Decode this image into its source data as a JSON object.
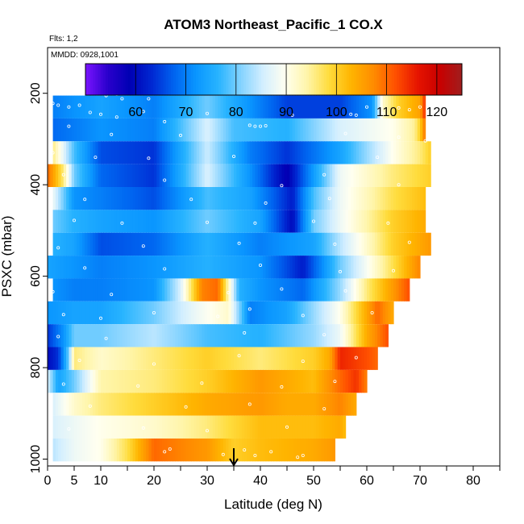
{
  "chart_data": {
    "type": "heatmap",
    "title": "ATOM3 Northeast_Pacific_1 CO.X",
    "subtitle_flights": "Flts: 1,2",
    "subtitle_dates": "MMDD: 0928,1001",
    "xlabel": "Latitude (deg N)",
    "ylabel": "PSXC (mbar)",
    "xlim": [
      0,
      85
    ],
    "ylim": [
      1000,
      100
    ],
    "x_ticks": [
      0,
      5,
      10,
      20,
      30,
      40,
      50,
      60,
      70,
      80
    ],
    "x_tick_labels": [
      "0",
      "5",
      "10",
      "20",
      "30",
      "40",
      "50",
      "60",
      "70",
      "80"
    ],
    "x_minor_ticks": [
      15,
      25,
      35,
      45,
      55,
      65,
      75,
      85
    ],
    "y_ticks": [
      200,
      400,
      600,
      800,
      1000
    ],
    "y_tick_labels": [
      "200",
      "400",
      "600",
      "800",
      "1000"
    ],
    "colorbar": {
      "range": [
        50,
        125
      ],
      "ticks": [
        60,
        70,
        80,
        90,
        100,
        110,
        120
      ],
      "tick_labels": [
        "60",
        "70",
        "80",
        "90",
        "100",
        "110",
        "120"
      ],
      "colors": [
        "#7b14ff",
        "#2a00cc",
        "#0000b4",
        "#0028d2",
        "#0064f0",
        "#0a96ff",
        "#28b4ff",
        "#82d2ff",
        "#d2eeff",
        "#fffff0",
        "#fff5aa",
        "#ffdc3c",
        "#ffb400",
        "#ff8c00",
        "#ff5000",
        "#e61400",
        "#c80000",
        "#a01e1e"
      ]
    },
    "arrow_latitude": 35,
    "bands": [
      {
        "p": 180,
        "lat": [
          10,
          25,
          26,
          30,
          32,
          33
        ],
        "co": [
          82,
          80,
          62,
          58,
          52,
          52
        ]
      },
      {
        "p": 230,
        "lat": [
          1,
          10,
          20,
          30,
          38,
          45,
          55,
          61,
          63,
          66,
          70,
          71
        ],
        "co": [
          70,
          74,
          70,
          80,
          72,
          65,
          65,
          72,
          92,
          100,
          105,
          115
        ]
      },
      {
        "p": 280,
        "lat": [
          1,
          10,
          20,
          30,
          35,
          45,
          55,
          65,
          69,
          70,
          71
        ],
        "co": [
          68,
          72,
          70,
          86,
          78,
          76,
          86,
          90,
          95,
          100,
          110
        ]
      },
      {
        "p": 330,
        "lat": [
          1,
          5,
          10,
          20,
          30,
          38,
          45,
          55,
          65,
          70,
          72
        ],
        "co": [
          96,
          78,
          66,
          64,
          85,
          70,
          64,
          74,
          90,
          96,
          100
        ]
      },
      {
        "p": 380,
        "lat": [
          0,
          3,
          5,
          10,
          20,
          30,
          38,
          45,
          55,
          65,
          72
        ],
        "co": [
          110,
          96,
          80,
          68,
          64,
          86,
          72,
          58,
          88,
          96,
          100
        ]
      },
      {
        "p": 430,
        "lat": [
          1,
          5,
          10,
          20,
          30,
          38,
          46,
          50,
          55,
          65,
          71
        ],
        "co": [
          88,
          72,
          70,
          66,
          78,
          74,
          62,
          78,
          88,
          98,
          102
        ]
      },
      {
        "p": 480,
        "lat": [
          1,
          5,
          10,
          20,
          30,
          40,
          46,
          50,
          55,
          65,
          71
        ],
        "co": [
          80,
          76,
          74,
          72,
          80,
          74,
          60,
          80,
          88,
          100,
          104
        ]
      },
      {
        "p": 530,
        "lat": [
          1,
          5,
          10,
          20,
          30,
          40,
          50,
          55,
          60,
          65,
          72
        ],
        "co": [
          76,
          74,
          66,
          68,
          76,
          70,
          74,
          84,
          92,
          100,
          106
        ]
      },
      {
        "p": 580,
        "lat": [
          0,
          5,
          10,
          20,
          30,
          40,
          48,
          55,
          65,
          70
        ],
        "co": [
          74,
          72,
          70,
          72,
          76,
          72,
          62,
          80,
          98,
          108
        ]
      },
      {
        "p": 630,
        "lat": [
          1,
          5,
          10,
          20,
          25,
          29,
          32,
          36,
          40,
          48,
          55,
          60,
          65,
          68
        ],
        "co": [
          72,
          70,
          70,
          72,
          86,
          108,
          110,
          76,
          72,
          68,
          82,
          96,
          106,
          112
        ]
      },
      {
        "p": 680,
        "lat": [
          0,
          5,
          10,
          20,
          28,
          34,
          38,
          45,
          55,
          62,
          65
        ],
        "co": [
          72,
          74,
          74,
          80,
          88,
          92,
          70,
          74,
          90,
          110,
          104
        ]
      },
      {
        "p": 730,
        "lat": [
          0,
          3,
          5,
          10,
          20,
          30,
          40,
          50,
          55,
          60,
          64
        ],
        "co": [
          64,
          72,
          80,
          80,
          84,
          78,
          76,
          82,
          88,
          104,
          112
        ]
      },
      {
        "p": 780,
        "lat": [
          0,
          2,
          4,
          5,
          10,
          20,
          30,
          40,
          50,
          53,
          55,
          60,
          62
        ],
        "co": [
          60,
          64,
          80,
          96,
          92,
          96,
          100,
          96,
          100,
          104,
          115,
          112,
          110
        ]
      },
      {
        "p": 830,
        "lat": [
          0,
          2,
          5,
          10,
          20,
          30,
          40,
          45,
          50,
          55,
          58,
          60
        ],
        "co": [
          86,
          74,
          80,
          94,
          96,
          100,
          106,
          104,
          102,
          110,
          114,
          108
        ]
      },
      {
        "p": 880,
        "lat": [
          1,
          5,
          10,
          20,
          30,
          40,
          45,
          50,
          55,
          58
        ],
        "co": [
          86,
          92,
          96,
          100,
          104,
          106,
          104,
          104,
          108,
          104
        ]
      },
      {
        "p": 930,
        "lat": [
          1,
          5,
          10,
          20,
          30,
          40,
          50,
          55,
          56
        ],
        "co": [
          86,
          88,
          90,
          92,
          96,
          102,
          102,
          104,
          102
        ]
      },
      {
        "p": 980,
        "lat": [
          1,
          5,
          10,
          15,
          20,
          25,
          30,
          35,
          40,
          50,
          54
        ],
        "co": [
          84,
          88,
          90,
          98,
          110,
          108,
          106,
          100,
          102,
          104,
          106
        ]
      }
    ],
    "obs_points": [
      {
        "lat": 11,
        "p": 205
      },
      {
        "lat": 13,
        "p": 202
      },
      {
        "lat": 14,
        "p": 212
      },
      {
        "lat": 19,
        "p": 212
      },
      {
        "lat": 25,
        "p": 200
      },
      {
        "lat": 27,
        "p": 196
      },
      {
        "lat": 28,
        "p": 198
      },
      {
        "lat": 29,
        "p": 197
      },
      {
        "lat": 30,
        "p": 196
      },
      {
        "lat": 1,
        "p": 222
      },
      {
        "lat": 2,
        "p": 226
      },
      {
        "lat": 4,
        "p": 230
      },
      {
        "lat": 6,
        "p": 226
      },
      {
        "lat": 8,
        "p": 242
      },
      {
        "lat": 10,
        "p": 246
      },
      {
        "lat": 13,
        "p": 252
      },
      {
        "lat": 18,
        "p": 240
      },
      {
        "lat": 22,
        "p": 262
      },
      {
        "lat": 30,
        "p": 244
      },
      {
        "lat": 38,
        "p": 270
      },
      {
        "lat": 39,
        "p": 272
      },
      {
        "lat": 40,
        "p": 272
      },
      {
        "lat": 41,
        "p": 271
      },
      {
        "lat": 46,
        "p": 248
      },
      {
        "lat": 57,
        "p": 246
      },
      {
        "lat": 58,
        "p": 248
      },
      {
        "lat": 60,
        "p": 230
      },
      {
        "lat": 63,
        "p": 244
      },
      {
        "lat": 66,
        "p": 232
      },
      {
        "lat": 68,
        "p": 236
      },
      {
        "lat": 70,
        "p": 230
      },
      {
        "lat": 4,
        "p": 272
      },
      {
        "lat": 12,
        "p": 290
      },
      {
        "lat": 25,
        "p": 292
      },
      {
        "lat": 56,
        "p": 288
      },
      {
        "lat": 66,
        "p": 296
      },
      {
        "lat": 71,
        "p": 304
      },
      {
        "lat": 1,
        "p": 330
      },
      {
        "lat": 9,
        "p": 340
      },
      {
        "lat": 19,
        "p": 342
      },
      {
        "lat": 35,
        "p": 338
      },
      {
        "lat": 62,
        "p": 340
      },
      {
        "lat": 3,
        "p": 378
      },
      {
        "lat": 22,
        "p": 390
      },
      {
        "lat": 44,
        "p": 402
      },
      {
        "lat": 52,
        "p": 378
      },
      {
        "lat": 66,
        "p": 400
      },
      {
        "lat": 7,
        "p": 432
      },
      {
        "lat": 27,
        "p": 432
      },
      {
        "lat": 41,
        "p": 440
      },
      {
        "lat": 53,
        "p": 430
      },
      {
        "lat": 5,
        "p": 478
      },
      {
        "lat": 14,
        "p": 484
      },
      {
        "lat": 30,
        "p": 482
      },
      {
        "lat": 39,
        "p": 484
      },
      {
        "lat": 50,
        "p": 480
      },
      {
        "lat": 64,
        "p": 484
      },
      {
        "lat": 2,
        "p": 538
      },
      {
        "lat": 18,
        "p": 534
      },
      {
        "lat": 36,
        "p": 528
      },
      {
        "lat": 54,
        "p": 530
      },
      {
        "lat": 68,
        "p": 526
      },
      {
        "lat": 7,
        "p": 582
      },
      {
        "lat": 22,
        "p": 584
      },
      {
        "lat": 40,
        "p": 576
      },
      {
        "lat": 55,
        "p": 590
      },
      {
        "lat": 65,
        "p": 588
      },
      {
        "lat": 1,
        "p": 634
      },
      {
        "lat": 12,
        "p": 640
      },
      {
        "lat": 34,
        "p": 636
      },
      {
        "lat": 44,
        "p": 628
      },
      {
        "lat": 56,
        "p": 632
      },
      {
        "lat": 3,
        "p": 684
      },
      {
        "lat": 10,
        "p": 692
      },
      {
        "lat": 20,
        "p": 680
      },
      {
        "lat": 32,
        "p": 688
      },
      {
        "lat": 38,
        "p": 672
      },
      {
        "lat": 48,
        "p": 686
      },
      {
        "lat": 61,
        "p": 680
      },
      {
        "lat": 2,
        "p": 732
      },
      {
        "lat": 11,
        "p": 736
      },
      {
        "lat": 37,
        "p": 724
      },
      {
        "lat": 52,
        "p": 728
      },
      {
        "lat": 6,
        "p": 784
      },
      {
        "lat": 20,
        "p": 792
      },
      {
        "lat": 36,
        "p": 774
      },
      {
        "lat": 48,
        "p": 786
      },
      {
        "lat": 58,
        "p": 778
      },
      {
        "lat": 3,
        "p": 836
      },
      {
        "lat": 17,
        "p": 840
      },
      {
        "lat": 29,
        "p": 834
      },
      {
        "lat": 44,
        "p": 842
      },
      {
        "lat": 54,
        "p": 830
      },
      {
        "lat": 8,
        "p": 884
      },
      {
        "lat": 26,
        "p": 886
      },
      {
        "lat": 38,
        "p": 880
      },
      {
        "lat": 52,
        "p": 890
      },
      {
        "lat": 4,
        "p": 934
      },
      {
        "lat": 18,
        "p": 932
      },
      {
        "lat": 30,
        "p": 938
      },
      {
        "lat": 45,
        "p": 930
      },
      {
        "lat": 22,
        "p": 984
      },
      {
        "lat": 23,
        "p": 978
      },
      {
        "lat": 33,
        "p": 990
      },
      {
        "lat": 37,
        "p": 980
      },
      {
        "lat": 39,
        "p": 992
      },
      {
        "lat": 42,
        "p": 984
      },
      {
        "lat": 47,
        "p": 996
      },
      {
        "lat": 48,
        "p": 992
      }
    ]
  }
}
